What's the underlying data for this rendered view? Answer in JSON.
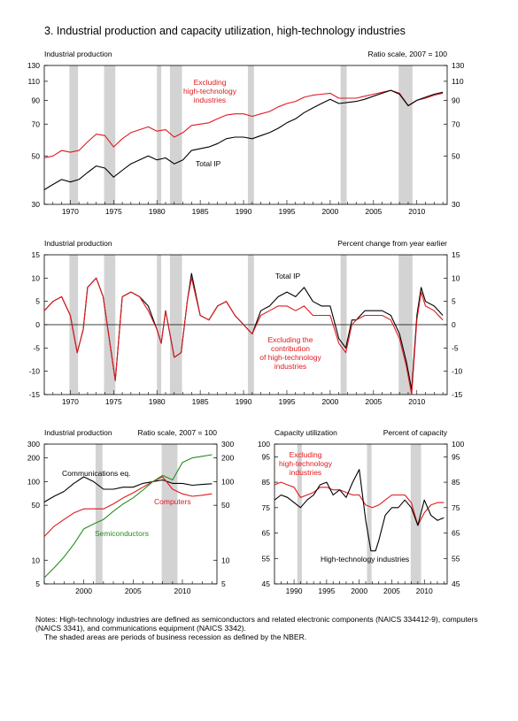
{
  "page": {
    "title": "3.  Industrial production and capacity utilization, high-technology industries",
    "notes": [
      "Notes:  High-technology industries are defined as semiconductors and related electronic components (NAICS 334412-9), computers (NAICS 3341), and communications equipment (NAICS 3342).",
      "The shaded areas are periods of business recession as defined by the NBER."
    ]
  },
  "colors": {
    "red": "#e0191e",
    "green": "#22901f",
    "black": "#000000",
    "recession": "#d3d3d3"
  },
  "chart_data": [
    {
      "id": "top",
      "type": "line",
      "title_left": "Industrial production",
      "title_right": "Ratio scale, 2007 = 100",
      "scale": "log",
      "ylim": [
        30,
        130
      ],
      "xlim": [
        1967,
        2013.5
      ],
      "yticks": [
        "130",
        "110",
        "90",
        "70",
        "50",
        "30"
      ],
      "xticks": [
        "1970",
        "1975",
        "1980",
        "1985",
        "1990",
        "1995",
        "2000",
        "2005",
        "2010"
      ],
      "recessions": [
        [
          1969.9,
          1970.9
        ],
        [
          1973.9,
          1975.2
        ],
        [
          1980.0,
          1980.5
        ],
        [
          1981.5,
          1982.9
        ],
        [
          1990.5,
          1991.2
        ],
        [
          2001.2,
          2001.9
        ],
        [
          2007.9,
          2009.5
        ]
      ],
      "series": [
        {
          "name": "Excluding high-technology industries",
          "label_lines": [
            "Excluding",
            "high-technology",
            "industries"
          ],
          "color": "red",
          "x": [
            1967,
            1968,
            1969,
            1970,
            1971,
            1972,
            1973,
            1974,
            1975,
            1976,
            1977,
            1978,
            1979,
            1980,
            1981,
            1982,
            1983,
            1984,
            1985,
            1986,
            1987,
            1988,
            1989,
            1990,
            1991,
            1992,
            1993,
            1994,
            1995,
            1996,
            1997,
            1998,
            1999,
            2000,
            2001,
            2002,
            2003,
            2004,
            2005,
            2006,
            2007,
            2008,
            2009,
            2010,
            2011,
            2012,
            2013
          ],
          "values": [
            49,
            50,
            53,
            52,
            53,
            58,
            63,
            62,
            55,
            60,
            64,
            66,
            68,
            65,
            66,
            61,
            64,
            69,
            70,
            71,
            74,
            77,
            78,
            78,
            76,
            78,
            80,
            84,
            87,
            89,
            93,
            95,
            96,
            97,
            92,
            92,
            92,
            94,
            96,
            98,
            100,
            97,
            85,
            90,
            92,
            95,
            97
          ]
        },
        {
          "name": "Total IP",
          "label_lines": [
            "Total IP"
          ],
          "color": "black",
          "x": [
            1967,
            1968,
            1969,
            1970,
            1971,
            1972,
            1973,
            1974,
            1975,
            1976,
            1977,
            1978,
            1979,
            1980,
            1981,
            1982,
            1983,
            1984,
            1985,
            1986,
            1987,
            1988,
            1989,
            1990,
            1991,
            1992,
            1993,
            1994,
            1995,
            1996,
            1997,
            1998,
            1999,
            2000,
            2001,
            2002,
            2003,
            2004,
            2005,
            2006,
            2007,
            2008,
            2009,
            2010,
            2011,
            2012,
            2013
          ],
          "values": [
            35,
            37,
            39,
            38,
            39,
            42,
            45,
            44,
            40,
            43,
            46,
            48,
            50,
            48,
            49,
            46,
            48,
            53,
            54,
            55,
            57,
            60,
            61,
            61,
            60,
            62,
            64,
            67,
            71,
            74,
            79,
            83,
            87,
            91,
            87,
            88,
            89,
            91,
            94,
            97,
            100,
            96,
            85,
            90,
            93,
            96,
            98
          ]
        }
      ]
    },
    {
      "id": "middle",
      "type": "line",
      "title_left": "Industrial production",
      "title_right": "Percent change from year earlier",
      "ylim": [
        -15,
        15
      ],
      "xlim": [
        1967,
        2013.5
      ],
      "yticks": [
        "15",
        "10",
        "5",
        "0",
        "-5",
        "-10",
        "-15"
      ],
      "xticks": [
        "1970",
        "1975",
        "1980",
        "1985",
        "1990",
        "1995",
        "2000",
        "2005",
        "2010"
      ],
      "recessions": [
        [
          1969.9,
          1970.9
        ],
        [
          1973.9,
          1975.2
        ],
        [
          1980.0,
          1980.5
        ],
        [
          1981.5,
          1982.9
        ],
        [
          1990.5,
          1991.2
        ],
        [
          2001.2,
          2001.9
        ],
        [
          2007.9,
          2009.5
        ]
      ],
      "series": [
        {
          "name": "Total IP",
          "label_lines": [
            "Total IP"
          ],
          "color": "black",
          "x": [
            1967,
            1968,
            1969,
            1970,
            1970.8,
            1971.5,
            1972,
            1973,
            1973.8,
            1974.5,
            1975.2,
            1976,
            1977,
            1978,
            1979,
            1980,
            1980.5,
            1981,
            1982,
            1982.8,
            1983.5,
            1984,
            1985,
            1986,
            1987,
            1988,
            1989,
            1990,
            1991,
            1992,
            1993,
            1994,
            1995,
            1996,
            1997,
            1998,
            1999,
            2000,
            2001,
            2001.8,
            2002.5,
            2003,
            2004,
            2005,
            2006,
            2007,
            2008,
            2008.8,
            2009.4,
            2010,
            2010.5,
            2011,
            2012,
            2013
          ],
          "values": [
            3,
            5,
            6,
            2,
            -6,
            -1,
            8,
            10,
            6,
            -3,
            -12,
            6,
            7,
            6,
            4,
            -1,
            -4,
            3,
            -7,
            -6,
            5,
            11,
            2,
            1,
            4,
            5,
            2,
            0,
            -2,
            3,
            4,
            6,
            7,
            6,
            8,
            5,
            4,
            4,
            -3,
            -5,
            1,
            1,
            3,
            3,
            3,
            2,
            -2,
            -8,
            -14,
            2,
            8,
            5,
            4,
            2
          ]
        },
        {
          "name": "Excluding the contribution of high-technology industries",
          "label_lines": [
            "Excluding the",
            "contribution",
            "of high-technology",
            "industries"
          ],
          "color": "red",
          "x": [
            1967,
            1968,
            1969,
            1970,
            1970.8,
            1971.5,
            1972,
            1973,
            1973.8,
            1974.5,
            1975.2,
            1976,
            1977,
            1978,
            1979,
            1980,
            1980.5,
            1981,
            1982,
            1982.8,
            1983.5,
            1984,
            1985,
            1986,
            1987,
            1988,
            1989,
            1990,
            1991,
            1992,
            1993,
            1994,
            1995,
            1996,
            1997,
            1998,
            1999,
            2000,
            2001,
            2001.8,
            2002.5,
            2003,
            2004,
            2005,
            2006,
            2007,
            2008,
            2008.8,
            2009.4,
            2010,
            2010.5,
            2011,
            2012,
            2013
          ],
          "values": [
            3,
            5,
            6,
            2,
            -6,
            -1,
            8,
            10,
            6,
            -3,
            -12,
            6,
            7,
            6,
            3,
            -1,
            -4,
            3,
            -7,
            -6,
            5,
            10,
            2,
            1,
            4,
            5,
            2,
            0,
            -2,
            2,
            3,
            4,
            4,
            3,
            4,
            2,
            2,
            2,
            -4,
            -6,
            0,
            1,
            2,
            2,
            2,
            1,
            -3,
            -9,
            -15,
            1,
            7,
            4,
            3,
            1
          ]
        }
      ]
    },
    {
      "id": "bottom-left",
      "type": "line",
      "title_left": "Industrial production",
      "title_right": "Ratio scale, 2007 = 100",
      "scale": "log",
      "ylim": [
        5,
        300
      ],
      "xlim": [
        1996,
        2013.5
      ],
      "yticks": [
        "300",
        "200",
        "100",
        "50",
        "10",
        "5"
      ],
      "xticks": [
        "2000",
        "2005",
        "2010"
      ],
      "recessions": [
        [
          2001.2,
          2001.9
        ],
        [
          2007.9,
          2009.5
        ]
      ],
      "series": [
        {
          "name": "Communications eq.",
          "label_lines": [
            "Communications eq."
          ],
          "color": "black",
          "x": [
            1996,
            1997,
            1998,
            1999,
            2000,
            2001,
            2002,
            2003,
            2004,
            2005,
            2006,
            2007,
            2008,
            2009,
            2010,
            2011,
            2012,
            2013
          ],
          "values": [
            55,
            65,
            75,
            95,
            115,
            100,
            80,
            80,
            85,
            85,
            95,
            100,
            105,
            95,
            95,
            90,
            92,
            94
          ]
        },
        {
          "name": "Computers",
          "label_lines": [
            "Computers"
          ],
          "color": "red",
          "x": [
            1996,
            1997,
            1998,
            1999,
            2000,
            2001,
            2002,
            2003,
            2004,
            2005,
            2006,
            2007,
            2008,
            2009,
            2010,
            2011,
            2012,
            2013
          ],
          "values": [
            20,
            27,
            33,
            40,
            45,
            45,
            45,
            52,
            62,
            72,
            85,
            100,
            115,
            80,
            70,
            65,
            67,
            70
          ]
        },
        {
          "name": "Semiconductors",
          "label_lines": [
            "Semiconductors"
          ],
          "color": "green",
          "x": [
            1996,
            1997,
            1998,
            1999,
            2000,
            2001,
            2002,
            2003,
            2004,
            2005,
            2006,
            2007,
            2008,
            2009,
            2010,
            2011,
            2012,
            2013
          ],
          "values": [
            6,
            8,
            11,
            16,
            25,
            29,
            33,
            42,
            52,
            62,
            78,
            100,
            120,
            105,
            175,
            200,
            210,
            220
          ]
        }
      ]
    },
    {
      "id": "bottom-right",
      "type": "line",
      "title_left": "Capacity utilization",
      "title_right": "Percent of capacity",
      "ylim": [
        45,
        100
      ],
      "xlim": [
        1987,
        2013.5
      ],
      "yticks": [
        "100",
        "95",
        "85",
        "75",
        "65",
        "55",
        "45"
      ],
      "xticks": [
        "1990",
        "1995",
        "2000",
        "2005",
        "2010"
      ],
      "recessions": [
        [
          1990.5,
          1991.2
        ],
        [
          2001.2,
          2001.9
        ],
        [
          2007.9,
          2009.5
        ]
      ],
      "series": [
        {
          "name": "Excluding high-technology industries",
          "label_lines": [
            "Excluding",
            "high-technology",
            "industries"
          ],
          "color": "red",
          "x": [
            1987,
            1988,
            1989,
            1990,
            1991,
            1992,
            1993,
            1994,
            1995,
            1996,
            1997,
            1998,
            1999,
            2000,
            2001,
            2002,
            2003,
            2004,
            2005,
            2006,
            2007,
            2008,
            2009,
            2010,
            2011,
            2012,
            2013
          ],
          "values": [
            84,
            85,
            84,
            83,
            79,
            80,
            81,
            83,
            83,
            82,
            82,
            81,
            80,
            80,
            76,
            75,
            76,
            78,
            80,
            80,
            80,
            77,
            68,
            73,
            76,
            77,
            77
          ]
        },
        {
          "name": "High-technology industries",
          "label_lines": [
            "High-technology industries"
          ],
          "color": "black",
          "x": [
            1987,
            1988,
            1989,
            1990,
            1991,
            1992,
            1993,
            1994,
            1995,
            1996,
            1997,
            1998,
            1999,
            2000,
            2001,
            2001.8,
            2002.5,
            2003,
            2004,
            2005,
            2006,
            2007,
            2008,
            2009,
            2010,
            2011,
            2012,
            2013
          ],
          "values": [
            78,
            80,
            79,
            77,
            75,
            78,
            80,
            84,
            85,
            80,
            82,
            79,
            85,
            90,
            70,
            58,
            58,
            62,
            72,
            75,
            75,
            78,
            75,
            68,
            78,
            72,
            70,
            71
          ]
        }
      ]
    }
  ]
}
